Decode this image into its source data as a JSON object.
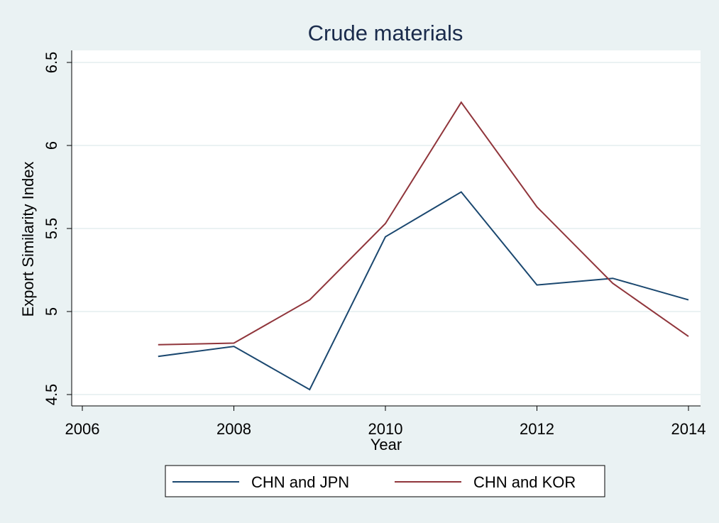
{
  "chart_data": {
    "type": "line",
    "title": "Crude materials",
    "xlabel": "Year",
    "ylabel": "Export Similarity Index",
    "xlim": [
      2006,
      2014
    ],
    "ylim": [
      4.5,
      6.5
    ],
    "x_ticks": [
      2006,
      2008,
      2010,
      2012,
      2014
    ],
    "y_ticks": [
      4.5,
      5,
      5.5,
      6,
      6.5
    ],
    "grid": "horizontal",
    "legend_position": "bottom",
    "x": [
      2007,
      2008,
      2009,
      2010,
      2011,
      2012,
      2013,
      2014
    ],
    "series": [
      {
        "name": "CHN and JPN",
        "color": "#1a476f",
        "values": [
          4.73,
          4.79,
          4.53,
          5.45,
          5.72,
          5.16,
          5.2,
          5.07
        ]
      },
      {
        "name": "CHN and KOR",
        "color": "#90353b",
        "values": [
          4.8,
          4.81,
          5.07,
          5.53,
          6.26,
          5.63,
          5.17,
          4.85
        ]
      }
    ]
  }
}
